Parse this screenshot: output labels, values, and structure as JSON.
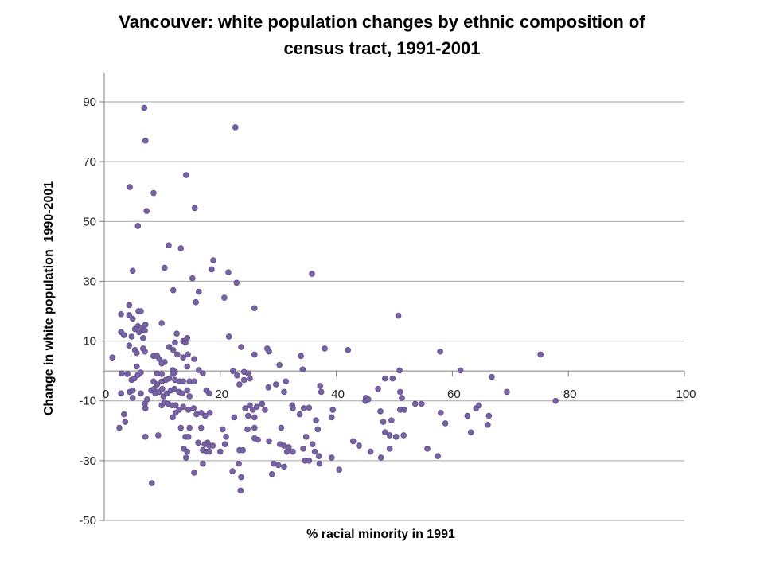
{
  "title": {
    "lines": [
      "Vancouver: white population changes by ethnic composition of",
      "census tract, 1991-2001"
    ]
  },
  "chart_data": {
    "type": "scatter",
    "title": "Vancouver: white population changes by ethnic composition of census tract, 1991-2001",
    "xlabel": "% racial minority in 1991",
    "ylabel": "Change in white population  1990-2001",
    "xlim": [
      0,
      100
    ],
    "ylim": [
      -50,
      90
    ],
    "x_ticks": [
      0,
      20,
      40,
      60,
      80,
      100
    ],
    "y_ticks": [
      90,
      70,
      50,
      30,
      10,
      -10,
      -30,
      -50
    ],
    "grid": "horizontal",
    "legend": "none",
    "marker_color": "#7763A4",
    "marker_edge_color": "#5E4C85",
    "gridline_color": "#A6A6A6",
    "axis_color": "#808080",
    "points": [
      [
        6.9,
        88
      ],
      [
        22.6,
        81.5
      ],
      [
        7.1,
        77
      ],
      [
        14.1,
        65.5
      ],
      [
        4.4,
        61.5
      ],
      [
        8.5,
        59.5
      ],
      [
        15.6,
        54.5
      ],
      [
        7.3,
        53.5
      ],
      [
        5.8,
        48.5
      ],
      [
        11.1,
        42
      ],
      [
        13.2,
        41
      ],
      [
        18.8,
        37
      ],
      [
        10.4,
        34.5
      ],
      [
        4.9,
        33.5
      ],
      [
        18.5,
        34
      ],
      [
        21.4,
        33
      ],
      [
        15.2,
        31
      ],
      [
        35.8,
        32.5
      ],
      [
        22.8,
        29.5
      ],
      [
        11.9,
        27
      ],
      [
        16.3,
        26.5
      ],
      [
        20.7,
        24.5
      ],
      [
        15.8,
        23
      ],
      [
        4.3,
        22
      ],
      [
        25.9,
        21
      ],
      [
        50.7,
        18.5
      ],
      [
        2.9,
        19
      ],
      [
        4.3,
        18.7
      ],
      [
        5.9,
        20
      ],
      [
        6.3,
        20
      ],
      [
        4.9,
        17.5
      ],
      [
        5.8,
        15
      ],
      [
        7.1,
        15.5
      ],
      [
        6.4,
        14.5
      ],
      [
        5.3,
        14
      ],
      [
        7,
        13.5
      ],
      [
        9.9,
        16
      ],
      [
        6,
        13
      ],
      [
        2.9,
        13
      ],
      [
        3.4,
        12
      ],
      [
        4.7,
        11.5
      ],
      [
        12.5,
        12.5
      ],
      [
        6.7,
        11
      ],
      [
        14.3,
        11
      ],
      [
        13.6,
        10
      ],
      [
        14,
        9.5
      ],
      [
        21.5,
        11.5
      ],
      [
        12.2,
        9.5
      ],
      [
        4.3,
        8.5
      ],
      [
        5.3,
        7
      ],
      [
        5.6,
        6
      ],
      [
        6.7,
        7.5
      ],
      [
        7,
        6.5
      ],
      [
        11.2,
        8
      ],
      [
        11.9,
        7
      ],
      [
        23.6,
        8
      ],
      [
        25.9,
        5.5
      ],
      [
        28.1,
        7.5
      ],
      [
        28.4,
        6.5
      ],
      [
        38,
        7.5
      ],
      [
        42,
        7
      ],
      [
        33.9,
        5
      ],
      [
        57.9,
        6.5
      ],
      [
        75.2,
        5.5
      ],
      [
        1.4,
        4.5
      ],
      [
        8.5,
        5
      ],
      [
        9.1,
        5
      ],
      [
        9.5,
        4
      ],
      [
        10.4,
        3
      ],
      [
        9.9,
        2.5
      ],
      [
        12.6,
        5.5
      ],
      [
        13.6,
        4.5
      ],
      [
        14.4,
        5.5
      ],
      [
        15.5,
        4
      ],
      [
        14.3,
        1.5
      ],
      [
        5.6,
        1.5
      ],
      [
        30.2,
        2
      ],
      [
        34.2,
        0.5
      ],
      [
        50.9,
        0.2
      ],
      [
        61.4,
        0.2
      ],
      [
        11.8,
        0.3
      ],
      [
        12.2,
        -0.3
      ],
      [
        16.3,
        0.3
      ],
      [
        22.2,
        0
      ],
      [
        24.1,
        -0.3
      ],
      [
        3,
        -0.8
      ],
      [
        4,
        -1
      ],
      [
        5.8,
        -1.3
      ],
      [
        6.3,
        -0.5
      ],
      [
        9.1,
        -0.8
      ],
      [
        9.9,
        -1
      ],
      [
        11.9,
        -1
      ],
      [
        17,
        -0.8
      ],
      [
        22.9,
        -1.5
      ],
      [
        24.8,
        -0.8
      ],
      [
        66.8,
        -2
      ],
      [
        4.7,
        -3
      ],
      [
        5.2,
        -2.5
      ],
      [
        8.5,
        -3.5
      ],
      [
        9.1,
        -4.5
      ],
      [
        9.9,
        -3.5
      ],
      [
        10.6,
        -3
      ],
      [
        11.2,
        -2.5
      ],
      [
        12.2,
        -3
      ],
      [
        13,
        -3.5
      ],
      [
        13.6,
        -3.5
      ],
      [
        14.7,
        -3.5
      ],
      [
        15.5,
        -3.5
      ],
      [
        23.3,
        -4.5
      ],
      [
        24.1,
        -3
      ],
      [
        25.1,
        -2.5
      ],
      [
        29.6,
        -4.5
      ],
      [
        31.3,
        -3.5
      ],
      [
        48.4,
        -2.5
      ],
      [
        49.7,
        -2.5
      ],
      [
        2.9,
        -7.5
      ],
      [
        4.4,
        -7
      ],
      [
        4.9,
        -6.5
      ],
      [
        4.9,
        -9
      ],
      [
        6.3,
        -7.5
      ],
      [
        7.4,
        -9.5
      ],
      [
        8.1,
        -6.5
      ],
      [
        8.6,
        -6
      ],
      [
        8.8,
        -7.5
      ],
      [
        9.5,
        -7
      ],
      [
        10,
        -6
      ],
      [
        10.2,
        -8.5
      ],
      [
        10.8,
        -7.5
      ],
      [
        11.5,
        -6.5
      ],
      [
        12.1,
        -6
      ],
      [
        12.9,
        -7
      ],
      [
        13.4,
        -7.5
      ],
      [
        14.3,
        -6.5
      ],
      [
        14.7,
        -8.5
      ],
      [
        17.6,
        -6.5
      ],
      [
        18.1,
        -7.5
      ],
      [
        28.3,
        -5.5
      ],
      [
        31,
        -7
      ],
      [
        37.2,
        -5
      ],
      [
        37.4,
        -7
      ],
      [
        47.2,
        -6
      ],
      [
        51,
        -7
      ],
      [
        51.3,
        -9
      ],
      [
        45.1,
        -9
      ],
      [
        45,
        -10
      ],
      [
        45.5,
        -9.5
      ],
      [
        69.4,
        -7
      ],
      [
        77.8,
        -10
      ],
      [
        7,
        -11
      ],
      [
        7.1,
        -12.5
      ],
      [
        9.9,
        -11.5
      ],
      [
        10.4,
        -10.5
      ],
      [
        11,
        -11
      ],
      [
        11.7,
        -11.5
      ],
      [
        12.3,
        -11.5
      ],
      [
        12.9,
        -13
      ],
      [
        13.6,
        -12
      ],
      [
        14.5,
        -13
      ],
      [
        15.4,
        -12.5
      ],
      [
        24.3,
        -12.5
      ],
      [
        25.1,
        -11.5
      ],
      [
        25.6,
        -13
      ],
      [
        26.3,
        -12
      ],
      [
        27.2,
        -11
      ],
      [
        27.7,
        -13
      ],
      [
        32.4,
        -11.5
      ],
      [
        32.5,
        -12.5
      ],
      [
        34.4,
        -12.5
      ],
      [
        35.3,
        -12.3
      ],
      [
        39.4,
        -13
      ],
      [
        47.6,
        -13.5
      ],
      [
        51,
        -13
      ],
      [
        51.7,
        -13
      ],
      [
        53.6,
        -11
      ],
      [
        54.7,
        -11
      ],
      [
        58,
        -14
      ],
      [
        64.1,
        -12.5
      ],
      [
        64.6,
        -11.5
      ],
      [
        3.4,
        -14.5
      ],
      [
        3.6,
        -17
      ],
      [
        12.3,
        -14
      ],
      [
        11.8,
        -15.5
      ],
      [
        15.9,
        -14.5
      ],
      [
        16.7,
        -14
      ],
      [
        17.4,
        -15
      ],
      [
        18.2,
        -14
      ],
      [
        22.4,
        -15.5
      ],
      [
        24.8,
        -15
      ],
      [
        25.9,
        -15.5
      ],
      [
        33.7,
        -14.5
      ],
      [
        36.5,
        -16.5
      ],
      [
        39.2,
        -15.5
      ],
      [
        48.1,
        -17
      ],
      [
        49.5,
        -16.5
      ],
      [
        58.8,
        -17.5
      ],
      [
        62.6,
        -15
      ],
      [
        66.3,
        -15
      ],
      [
        66.1,
        -18
      ],
      [
        2.6,
        -19
      ],
      [
        7.1,
        -22
      ],
      [
        13.2,
        -19
      ],
      [
        14.7,
        -19
      ],
      [
        16.7,
        -19
      ],
      [
        20.4,
        -19.5
      ],
      [
        24.7,
        -19.5
      ],
      [
        25.9,
        -19
      ],
      [
        30.5,
        -19
      ],
      [
        36.8,
        -19.5
      ],
      [
        48.4,
        -20.5
      ],
      [
        49.2,
        -21.5
      ],
      [
        50.3,
        -22
      ],
      [
        51.6,
        -21.5
      ],
      [
        63.2,
        -20.5
      ],
      [
        14,
        -22
      ],
      [
        14.5,
        -22
      ],
      [
        21,
        -22
      ],
      [
        25.9,
        -22.5
      ],
      [
        26.5,
        -23
      ],
      [
        9.3,
        -21.5
      ],
      [
        34.8,
        -22
      ],
      [
        42.9,
        -23.5
      ],
      [
        16.2,
        -24
      ],
      [
        17.3,
        -24.5
      ],
      [
        17.8,
        -24
      ],
      [
        18.1,
        -25
      ],
      [
        18.7,
        -25
      ],
      [
        20.8,
        -24.5
      ],
      [
        28.4,
        -23.5
      ],
      [
        30.3,
        -24.5
      ],
      [
        31,
        -25
      ],
      [
        43.9,
        -25
      ],
      [
        35.9,
        -24.5
      ],
      [
        34.3,
        -26
      ],
      [
        13.7,
        -26
      ],
      [
        14.3,
        -27
      ],
      [
        17,
        -26.5
      ],
      [
        17.6,
        -27
      ],
      [
        18.1,
        -27
      ],
      [
        20,
        -27
      ],
      [
        23.3,
        -26.5
      ],
      [
        23.9,
        -26.5
      ],
      [
        31.5,
        -27
      ],
      [
        31.8,
        -25.5
      ],
      [
        32.5,
        -27
      ],
      [
        36.3,
        -27
      ],
      [
        45.9,
        -27
      ],
      [
        49.2,
        -26
      ],
      [
        55.7,
        -26
      ],
      [
        37,
        -28.5
      ],
      [
        39.2,
        -29
      ],
      [
        47.7,
        -29
      ],
      [
        57.5,
        -28.5
      ],
      [
        14.1,
        -29
      ],
      [
        34.6,
        -30
      ],
      [
        35.3,
        -30
      ],
      [
        17,
        -31
      ],
      [
        23.2,
        -31
      ],
      [
        29.2,
        -31
      ],
      [
        30,
        -31.5
      ],
      [
        37.1,
        -31
      ],
      [
        31,
        -32
      ],
      [
        40.5,
        -33
      ],
      [
        15.5,
        -34
      ],
      [
        22.1,
        -33.5
      ],
      [
        23.6,
        -35.5
      ],
      [
        28.9,
        -34.5
      ],
      [
        8.2,
        -37.5
      ],
      [
        23.5,
        -40
      ]
    ]
  },
  "y_axis": {
    "title": "Change in white population  1990-2001"
  },
  "x_axis": {
    "title": "% racial minority in 1991"
  }
}
